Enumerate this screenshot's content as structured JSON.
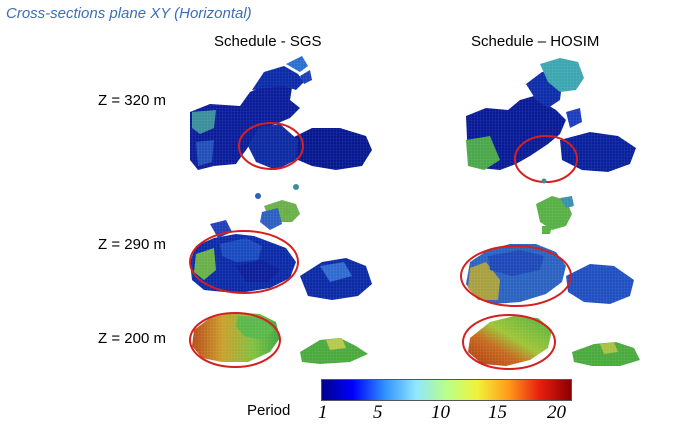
{
  "slide": {
    "title": "Cross-sections plane XY (Horizontal)"
  },
  "columns": [
    {
      "header": "Schedule - SGS"
    },
    {
      "header": "Schedule – HOSIM"
    }
  ],
  "rows": [
    {
      "label": "Z = 320 m"
    },
    {
      "label": "Z = 290 m"
    },
    {
      "label": "Z = 200 m"
    }
  ],
  "colorbar": {
    "title": "Period",
    "ticks": [
      "1",
      "5",
      "10",
      "15",
      "20"
    ],
    "range": [
      1,
      20
    ],
    "colors": [
      "#00008c",
      "#0000ff",
      "#2f8fff",
      "#8fe6ff",
      "#b8ff8a",
      "#f2f23a",
      "#ff9a1a",
      "#e81e0e",
      "#8a0000"
    ]
  },
  "colors": {
    "title": "#3c6fb2",
    "highlight_ellipse": "#d42020"
  }
}
